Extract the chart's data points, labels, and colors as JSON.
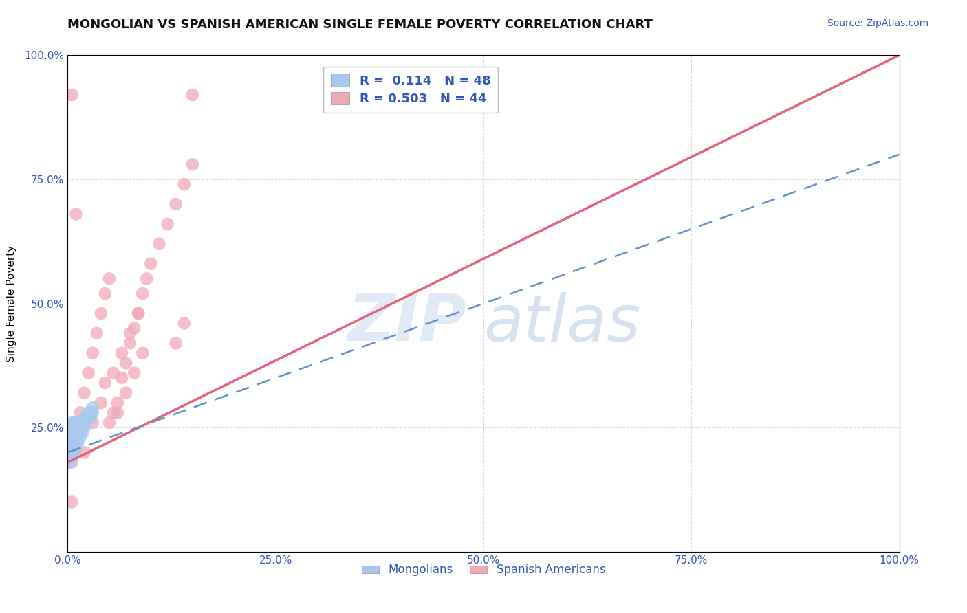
{
  "title": "MONGOLIAN VS SPANISH AMERICAN SINGLE FEMALE POVERTY CORRELATION CHART",
  "source": "Source: ZipAtlas.com",
  "ylabel": "Single Female Poverty",
  "xlim": [
    0,
    1
  ],
  "ylim": [
    0,
    1
  ],
  "xticks": [
    0,
    0.25,
    0.5,
    0.75,
    1.0
  ],
  "yticks": [
    0.25,
    0.5,
    0.75,
    1.0
  ],
  "xticklabels": [
    "0.0%",
    "25.0%",
    "50.0%",
    "75.0%",
    "100.0%"
  ],
  "yticklabels": [
    "25.0%",
    "50.0%",
    "75.0%",
    "100.0%"
  ],
  "mongolian_color": "#A8C8F0",
  "spanish_color": "#F0A8B8",
  "mongolian_R": 0.114,
  "mongolian_N": 48,
  "spanish_R": 0.503,
  "spanish_N": 44,
  "background_color": "#FFFFFF",
  "grid_color": "#CCCCCC",
  "title_fontsize": 13,
  "source_fontsize": 10,
  "label_fontsize": 11,
  "tick_fontsize": 11,
  "mongolian_x": [
    0.005,
    0.005,
    0.005,
    0.005,
    0.005,
    0.005,
    0.005,
    0.005,
    0.008,
    0.008,
    0.008,
    0.008,
    0.008,
    0.008,
    0.008,
    0.01,
    0.01,
    0.01,
    0.01,
    0.01,
    0.01,
    0.012,
    0.012,
    0.012,
    0.012,
    0.012,
    0.015,
    0.015,
    0.015,
    0.015,
    0.018,
    0.018,
    0.018,
    0.02,
    0.02,
    0.02,
    0.022,
    0.022,
    0.025,
    0.025,
    0.028,
    0.028,
    0.03,
    0.03,
    0.002,
    0.003,
    0.004,
    0.006
  ],
  "mongolian_y": [
    0.22,
    0.23,
    0.24,
    0.25,
    0.26,
    0.2,
    0.19,
    0.21,
    0.22,
    0.23,
    0.24,
    0.25,
    0.21,
    0.2,
    0.26,
    0.22,
    0.23,
    0.24,
    0.25,
    0.26,
    0.21,
    0.23,
    0.24,
    0.25,
    0.22,
    0.26,
    0.24,
    0.25,
    0.26,
    0.23,
    0.25,
    0.26,
    0.24,
    0.25,
    0.26,
    0.27,
    0.26,
    0.27,
    0.27,
    0.28,
    0.27,
    0.28,
    0.28,
    0.29,
    0.18,
    0.19,
    0.2,
    0.21
  ],
  "spanish_x": [
    0.005,
    0.01,
    0.015,
    0.02,
    0.025,
    0.03,
    0.035,
    0.04,
    0.045,
    0.05,
    0.055,
    0.06,
    0.065,
    0.07,
    0.075,
    0.08,
    0.085,
    0.09,
    0.095,
    0.1,
    0.11,
    0.12,
    0.13,
    0.14,
    0.15,
    0.045,
    0.055,
    0.065,
    0.075,
    0.085,
    0.02,
    0.03,
    0.04,
    0.13,
    0.14,
    0.05,
    0.06,
    0.07,
    0.08,
    0.09,
    0.005,
    0.01,
    0.005,
    0.15
  ],
  "spanish_y": [
    0.18,
    0.22,
    0.28,
    0.32,
    0.36,
    0.4,
    0.44,
    0.48,
    0.52,
    0.55,
    0.28,
    0.3,
    0.35,
    0.38,
    0.42,
    0.45,
    0.48,
    0.52,
    0.55,
    0.58,
    0.62,
    0.66,
    0.7,
    0.74,
    0.78,
    0.34,
    0.36,
    0.4,
    0.44,
    0.48,
    0.2,
    0.26,
    0.3,
    0.42,
    0.46,
    0.26,
    0.28,
    0.32,
    0.36,
    0.4,
    0.92,
    0.68,
    0.1,
    0.92
  ],
  "pink_line_x0": 0.0,
  "pink_line_y0": 0.18,
  "pink_line_x1": 1.0,
  "pink_line_y1": 1.0,
  "blue_line_x0": 0.0,
  "blue_line_y0": 0.2,
  "blue_line_x1": 1.0,
  "blue_line_y1": 0.8
}
